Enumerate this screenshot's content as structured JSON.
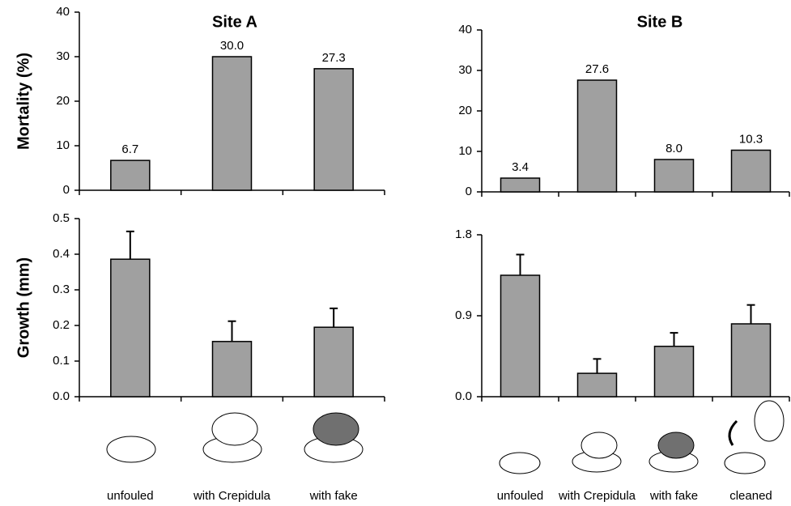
{
  "chart_data": [
    {
      "type": "bar",
      "title": "Site A",
      "ylabel": "Mortality (%)",
      "categories": [
        null,
        null,
        null
      ],
      "values": [
        6.7,
        30.0,
        27.3
      ],
      "value_labels": [
        "6.7",
        "30.0",
        "27.3"
      ],
      "color": "#a0a0a0",
      "ylim": [
        0,
        40
      ],
      "yticks": [
        0,
        10,
        20,
        30,
        40
      ]
    },
    {
      "type": "bar",
      "title": "Site B",
      "categories": [
        null,
        null,
        null,
        null
      ],
      "values": [
        3.4,
        27.6,
        8.0,
        10.3
      ],
      "value_labels": [
        "3.4",
        "27.6",
        "8.0",
        "10.3"
      ],
      "color": "#a0a0a0",
      "ylim": [
        0,
        40
      ],
      "yticks": [
        0,
        10,
        20,
        30,
        40
      ]
    },
    {
      "type": "bar",
      "ylabel": "Growth (mm)",
      "categories": [
        "unfouled",
        "with Crepidula",
        "with fake"
      ],
      "values": [
        0.386,
        0.155,
        0.195
      ],
      "errors": [
        0.078,
        0.057,
        0.053
      ],
      "color": "#a0a0a0",
      "ylim": [
        0,
        0.5
      ],
      "yticks": [
        {
          "value": 0,
          "label": "0.0"
        },
        0.1,
        0.2,
        0.3,
        0.4,
        0.5
      ]
    },
    {
      "type": "bar",
      "categories": [
        "unfouled",
        "with Crepidula",
        "with fake",
        "cleaned"
      ],
      "values": [
        1.35,
        0.26,
        0.56,
        0.81
      ],
      "errors": [
        0.23,
        0.16,
        0.15,
        0.21
      ],
      "color": "#a0a0a0",
      "ylim": [
        0,
        1.8
      ],
      "yticks": [
        {
          "value": 0,
          "label": "0.0"
        },
        0.9,
        1.8
      ]
    }
  ]
}
